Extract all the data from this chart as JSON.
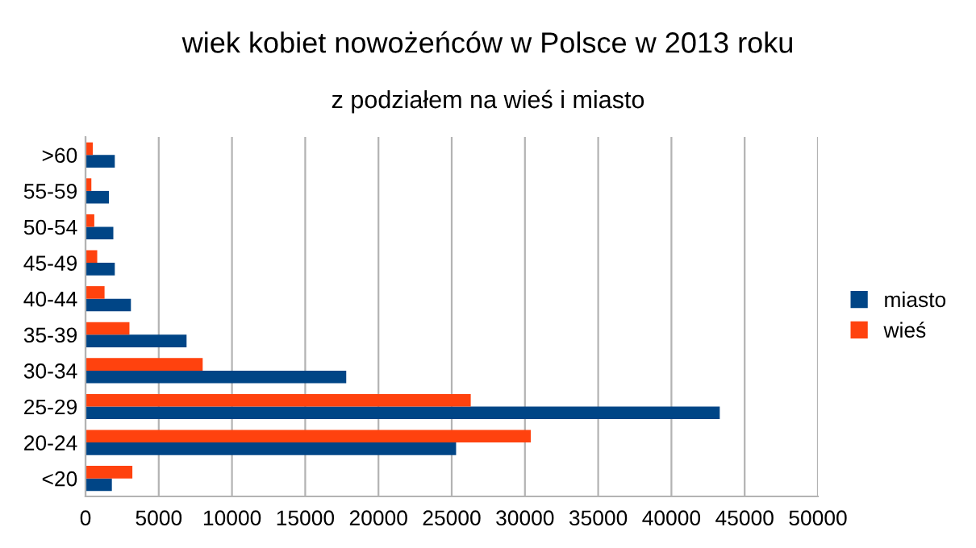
{
  "chart_data": {
    "type": "bar",
    "orientation": "horizontal",
    "title": "wiek kobiet nowożeńców w Polsce w 2013 roku",
    "subtitle": "z podziałem na wieś i miasto",
    "categories": [
      ">60",
      "55-59",
      "50-54",
      "45-49",
      "40-44",
      "35-39",
      "30-34",
      "25-29",
      "20-24",
      "<20"
    ],
    "series": [
      {
        "name": "miasto",
        "color": "#004586",
        "values": [
          2000,
          1600,
          1900,
          2000,
          3100,
          6900,
          17800,
          43300,
          25300,
          1800
        ]
      },
      {
        "name": "wieś",
        "color": "#ff420e",
        "values": [
          500,
          400,
          600,
          800,
          1300,
          3000,
          8000,
          26300,
          30400,
          3200
        ]
      }
    ],
    "xlim": [
      0,
      50000
    ],
    "xticks": [
      0,
      5000,
      10000,
      15000,
      20000,
      25000,
      30000,
      35000,
      40000,
      45000,
      50000
    ],
    "grid": "x",
    "legend": "right"
  }
}
